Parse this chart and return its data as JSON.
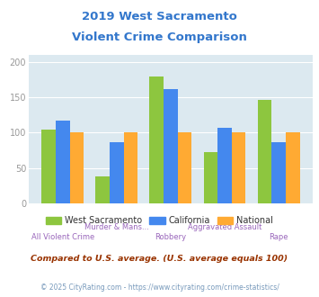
{
  "title_line1": "2019 West Sacramento",
  "title_line2": "Violent Crime Comparison",
  "categories_top": [
    "",
    "Murder & Mans...",
    "",
    "Aggravated Assault",
    ""
  ],
  "categories_bottom": [
    "All Violent Crime",
    "",
    "Robbery",
    "",
    "Rape"
  ],
  "west_sacramento": [
    104,
    38,
    179,
    73,
    147
  ],
  "california": [
    117,
    86,
    162,
    107,
    86
  ],
  "national": [
    100,
    100,
    100,
    100,
    100
  ],
  "color_ws": "#8dc63f",
  "color_ca": "#4488ee",
  "color_nat": "#ffaa33",
  "ylim": [
    0,
    210
  ],
  "yticks": [
    0,
    50,
    100,
    150,
    200
  ],
  "background_color": "#dce9f0",
  "legend_labels": [
    "West Sacramento",
    "California",
    "National"
  ],
  "footnote1": "Compared to U.S. average. (U.S. average equals 100)",
  "footnote2": "© 2025 CityRating.com - https://www.cityrating.com/crime-statistics/",
  "title_color": "#3377cc",
  "category_color": "#9966bb",
  "tick_color": "#999999",
  "footnote1_color": "#993300",
  "footnote2_color": "#7799bb"
}
